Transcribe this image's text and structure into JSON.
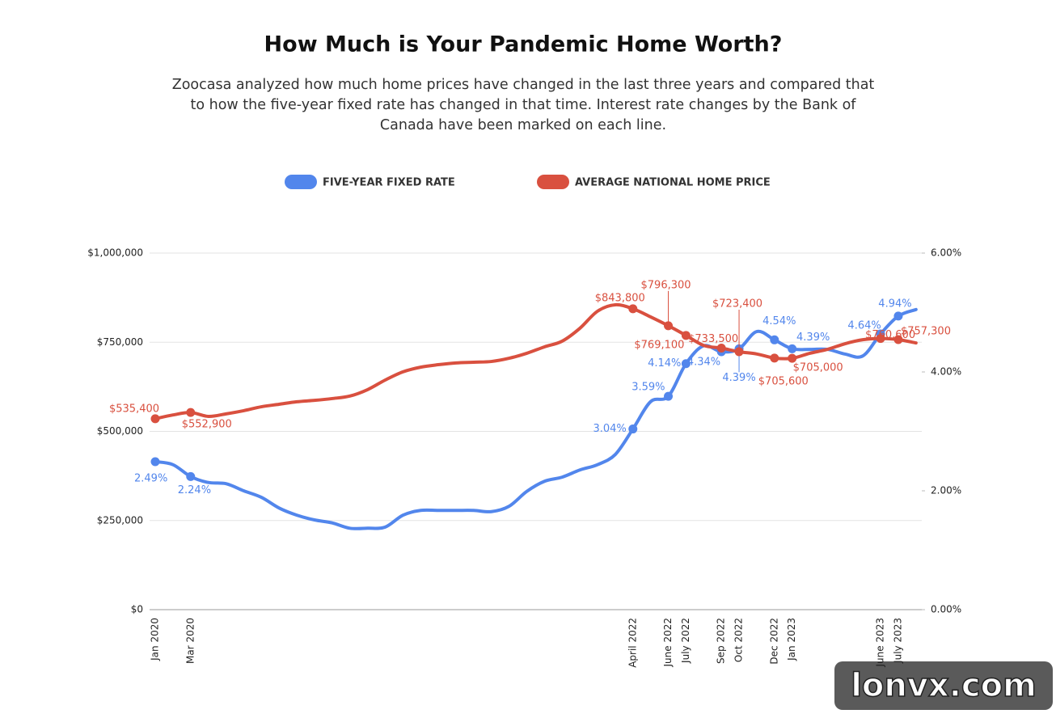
{
  "chart_data": {
    "type": "line",
    "title": "How Much is Your Pandemic Home Worth?",
    "subtitle": [
      "Zoocasa analyzed how much home prices have changed in the last three years and compared that",
      "to how the five-year fixed rate has changed in that time. Interest rate changes by the Bank of",
      "Canada have been marked on each line."
    ],
    "categories": [
      "Jan 2020",
      null,
      "Mar 2020",
      null,
      null,
      null,
      null,
      null,
      null,
      null,
      null,
      null,
      null,
      null,
      null,
      null,
      null,
      null,
      null,
      null,
      null,
      null,
      null,
      null,
      null,
      null,
      null,
      "April 2022",
      null,
      "June 2022",
      "July 2022",
      null,
      "Sep 2022",
      "Oct 2022",
      null,
      "Dec 2022",
      "Jan 2023",
      null,
      null,
      null,
      null,
      "June 2023",
      "July 2023",
      null
    ],
    "series": [
      {
        "name": "FIVE-YEAR FIXED RATE",
        "color": "#5286ec",
        "axis": "y2",
        "values": [
          2.49,
          2.44,
          2.24,
          2.14,
          2.12,
          2.0,
          1.89,
          1.71,
          1.59,
          1.51,
          1.46,
          1.37,
          1.37,
          1.39,
          1.59,
          1.67,
          1.67,
          1.67,
          1.67,
          1.65,
          1.74,
          1.99,
          2.16,
          2.23,
          2.35,
          2.44,
          2.61,
          3.04,
          3.5,
          3.59,
          4.14,
          4.44,
          4.34,
          4.39,
          4.68,
          4.54,
          4.39,
          4.38,
          4.38,
          4.3,
          4.27,
          4.64,
          4.94,
          5.05
        ],
        "value_labels": [
          "2.49%",
          null,
          "2.24%",
          null,
          null,
          null,
          null,
          null,
          null,
          null,
          null,
          null,
          null,
          null,
          null,
          null,
          null,
          null,
          null,
          null,
          null,
          null,
          null,
          null,
          null,
          null,
          null,
          "3.04%",
          null,
          "3.59%",
          "4.14%",
          null,
          "4.34%",
          "4.39%",
          null,
          "4.54%",
          "4.39%",
          null,
          null,
          null,
          null,
          "4.64%",
          "4.94%",
          null
        ]
      },
      {
        "name": "AVERAGE NATIONAL HOME PRICE",
        "color": "#d9503f",
        "values": [
          535400,
          546000,
          552900,
          542000,
          549000,
          558000,
          569000,
          576000,
          583000,
          587000,
          592000,
          599000,
          617000,
          644000,
          667000,
          680000,
          687000,
          692000,
          694000,
          696000,
          705000,
          719000,
          737000,
          753000,
          789000,
          837000,
          855000,
          843800,
          821000,
          796300,
          769100,
          741000,
          733500,
          723400,
          717000,
          705600,
          705000,
          719000,
          730000,
          746000,
          757000,
          760600,
          757300,
          748000
        ],
        "value_labels": [
          "$535,400",
          null,
          "$552,900",
          null,
          null,
          null,
          null,
          null,
          null,
          null,
          null,
          null,
          null,
          null,
          null,
          null,
          null,
          null,
          null,
          null,
          null,
          null,
          null,
          null,
          null,
          null,
          null,
          "$843,800",
          null,
          "$796,300",
          "$769,100",
          null,
          "$733,500",
          "$723,400",
          null,
          "$705,600",
          "$705,000",
          null,
          null,
          null,
          null,
          "$760,600",
          "$757,300",
          null
        ]
      }
    ],
    "ylim": [
      0,
      1000000
    ],
    "yticks": [
      {
        "value": 0,
        "label": "$0"
      },
      {
        "value": 250000,
        "label": "$250,000"
      },
      {
        "value": 500000,
        "label": "$500,000"
      },
      {
        "value": 750000,
        "label": "$750,000"
      },
      {
        "value": 1000000,
        "label": "$1,000,000"
      }
    ],
    "y2lim": [
      0,
      6
    ],
    "y2ticks": [
      {
        "value": 0,
        "label": "0.00%"
      },
      {
        "value": 2,
        "label": "2.00%"
      },
      {
        "value": 4,
        "label": "4.00%"
      },
      {
        "value": 6,
        "label": "6.00%"
      }
    ],
    "grid": true,
    "legend": "top"
  },
  "watermark": "lonvx.com"
}
